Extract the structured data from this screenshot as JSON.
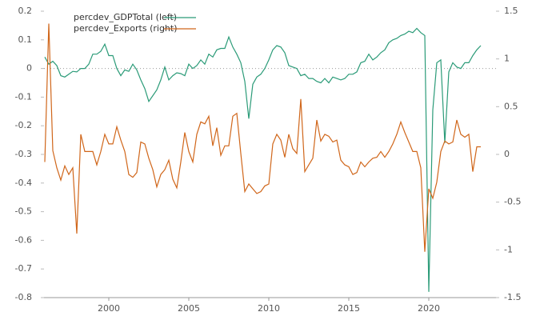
{
  "chart_data": {
    "type": "line",
    "x": [
      1996,
      1996.25,
      1996.5,
      1996.75,
      1997,
      1997.25,
      1997.5,
      1997.75,
      1998,
      1998.25,
      1998.5,
      1998.75,
      1999,
      1999.25,
      1999.5,
      1999.75,
      2000,
      2000.25,
      2000.5,
      2000.75,
      2001,
      2001.25,
      2001.5,
      2001.75,
      2002,
      2002.25,
      2002.5,
      2002.75,
      2003,
      2003.25,
      2003.5,
      2003.75,
      2004,
      2004.25,
      2004.5,
      2004.75,
      2005,
      2005.25,
      2005.5,
      2005.75,
      2006,
      2006.25,
      2006.5,
      2006.75,
      2007,
      2007.25,
      2007.5,
      2007.75,
      2008,
      2008.25,
      2008.5,
      2008.75,
      2009,
      2009.25,
      2009.5,
      2009.75,
      2010,
      2010.25,
      2010.5,
      2010.75,
      2011,
      2011.25,
      2011.5,
      2011.75,
      2012,
      2012.25,
      2012.5,
      2012.75,
      2013,
      2013.25,
      2013.5,
      2013.75,
      2014,
      2014.25,
      2014.5,
      2014.75,
      2015,
      2015.25,
      2015.5,
      2015.75,
      2016,
      2016.25,
      2016.5,
      2016.75,
      2017,
      2017.25,
      2017.5,
      2017.75,
      2018,
      2018.25,
      2018.5,
      2018.75,
      2019,
      2019.25,
      2019.5,
      2019.75,
      2020,
      2020.25,
      2020.5,
      2020.75,
      2021,
      2021.25,
      2021.5,
      2021.75,
      2022,
      2022.25,
      2022.5,
      2022.75,
      2023,
      2023.25
    ],
    "series": [
      {
        "name": "percdev_GDPTotal (left)",
        "color": "#2b9b78",
        "axis": "y",
        "values": [
          0.04,
          0.015,
          0.025,
          0.01,
          -0.025,
          -0.03,
          -0.02,
          -0.01,
          -0.012,
          0,
          0,
          0.015,
          0.05,
          0.05,
          0.06,
          0.085,
          0.045,
          0.045,
          0,
          -0.025,
          -0.005,
          -0.01,
          0.015,
          -0.005,
          -0.04,
          -0.07,
          -0.115,
          -0.095,
          -0.075,
          -0.04,
          0.005,
          -0.04,
          -0.025,
          -0.015,
          -0.018,
          -0.025,
          0.015,
          0,
          0.01,
          0.03,
          0.015,
          0.05,
          0.04,
          0.065,
          0.07,
          0.07,
          0.11,
          0.075,
          0.05,
          0.02,
          -0.045,
          -0.175,
          -0.055,
          -0.03,
          -0.02,
          0,
          0.03,
          0.065,
          0.08,
          0.075,
          0.055,
          0.01,
          0.005,
          0,
          -0.025,
          -0.02,
          -0.035,
          -0.035,
          -0.045,
          -0.05,
          -0.035,
          -0.05,
          -0.03,
          -0.035,
          -0.04,
          -0.035,
          -0.02,
          -0.02,
          -0.012,
          0.02,
          0.025,
          0.05,
          0.03,
          0.04,
          0.055,
          0.065,
          0.09,
          0.1,
          0.105,
          0.115,
          0.12,
          0.13,
          0.125,
          0.14,
          0.125,
          0.115,
          -0.78,
          -0.145,
          0.02,
          0.03,
          -0.26,
          -0.012,
          0.02,
          0.005,
          0,
          0.02,
          0.02,
          0.045,
          0.065,
          0.08
        ]
      },
      {
        "name": "percdev_Exports (right)",
        "color": "#d0661a",
        "axis": "y2",
        "values": [
          -0.08,
          1.37,
          0.04,
          -0.14,
          -0.27,
          -0.12,
          -0.21,
          -0.14,
          -0.83,
          0.21,
          0.03,
          0.03,
          0.03,
          -0.11,
          0.03,
          0.21,
          0.11,
          0.11,
          0.29,
          0.15,
          0.03,
          -0.21,
          -0.24,
          -0.19,
          0.13,
          0.11,
          -0.04,
          -0.16,
          -0.34,
          -0.21,
          -0.16,
          -0.06,
          -0.26,
          -0.35,
          -0.08,
          0.23,
          0.03,
          -0.08,
          0.21,
          0.34,
          0.32,
          0.4,
          0.09,
          0.28,
          -0.01,
          0.09,
          0.09,
          0.4,
          0.43,
          0.01,
          -0.39,
          -0.31,
          -0.36,
          -0.41,
          -0.39,
          -0.33,
          -0.31,
          0.11,
          0.21,
          0.15,
          -0.03,
          0.21,
          0.06,
          0.01,
          0.58,
          -0.18,
          -0.11,
          -0.04,
          0.36,
          0.14,
          0.21,
          0.19,
          0.13,
          0.15,
          -0.06,
          -0.11,
          -0.13,
          -0.21,
          -0.19,
          -0.08,
          -0.13,
          -0.08,
          -0.04,
          -0.03,
          0.03,
          -0.03,
          0.03,
          0.11,
          0.21,
          0.34,
          0.23,
          0.13,
          0.03,
          0.03,
          -0.14,
          -1.02,
          -0.36,
          -0.46,
          -0.29,
          0.03,
          0.14,
          0.11,
          0.13,
          0.36,
          0.21,
          0.18,
          0.21,
          -0.18,
          0.08,
          0.08
        ]
      }
    ],
    "xlim": [
      1995.95,
      2024.2
    ],
    "xticks": [
      2000,
      2005,
      2010,
      2015,
      2020
    ],
    "ylim": [
      -0.8,
      0.2
    ],
    "yticks": [
      0.2,
      0.1,
      0,
      -0.1,
      -0.2,
      -0.3,
      -0.4,
      -0.5,
      -0.6,
      -0.7,
      -0.8
    ],
    "y2lim": [
      -1.5,
      1.5
    ],
    "y2ticks": [
      1.5,
      1,
      0.5,
      0,
      -0.5,
      -1,
      -1.5
    ],
    "legend": "upper-left",
    "grid": false
  }
}
